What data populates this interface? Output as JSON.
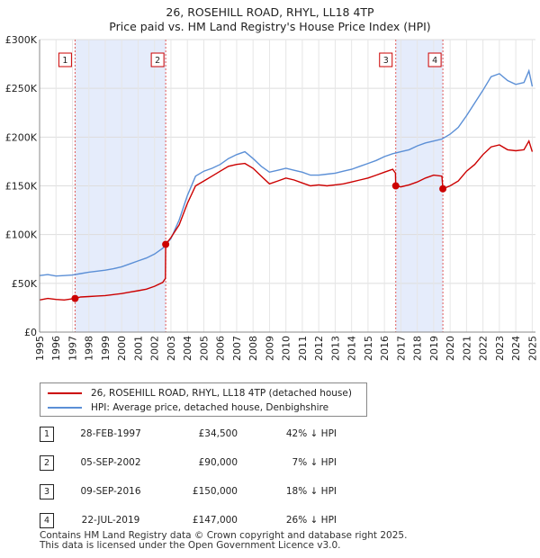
{
  "chart_data": {
    "type": "line",
    "title": "26, ROSEHILL ROAD, RHYL, LL18 4TP",
    "subtitle": "Price paid vs. HM Land Registry's House Price Index (HPI)",
    "xlim": [
      1995,
      2025.2
    ],
    "ylim": [
      0,
      300000
    ],
    "x_ticks": [
      "1995",
      "1996",
      "1997",
      "1998",
      "1999",
      "2000",
      "2001",
      "2002",
      "2003",
      "2004",
      "2005",
      "2006",
      "2007",
      "2008",
      "2009",
      "2010",
      "2011",
      "2012",
      "2013",
      "2014",
      "2015",
      "2016",
      "2017",
      "2018",
      "2019",
      "2020",
      "2021",
      "2022",
      "2023",
      "2024",
      "2025"
    ],
    "y_ticks": [
      {
        "value": 0,
        "label": "£0"
      },
      {
        "value": 50000,
        "label": "£50K"
      },
      {
        "value": 100000,
        "label": "£100K"
      },
      {
        "value": 150000,
        "label": "£150K"
      },
      {
        "value": 200000,
        "label": "£200K"
      },
      {
        "value": 250000,
        "label": "£250K"
      },
      {
        "value": 300000,
        "label": "£300K"
      }
    ],
    "shaded_ranges": [
      [
        1997.16,
        2002.68
      ],
      [
        2016.69,
        2019.56
      ]
    ],
    "series": [
      {
        "name": "26, ROSEHILL ROAD, RHYL, LL18 4TP (detached house)",
        "color": "#cc0000",
        "points": [
          [
            1995.0,
            33000
          ],
          [
            1995.5,
            34500
          ],
          [
            1996.0,
            33500
          ],
          [
            1996.5,
            33000
          ],
          [
            1997.16,
            34500
          ],
          [
            1997.5,
            36000
          ],
          [
            1998.0,
            36500
          ],
          [
            1998.5,
            37000
          ],
          [
            1999.0,
            37500
          ],
          [
            1999.5,
            38500
          ],
          [
            2000.0,
            39500
          ],
          [
            2000.5,
            41000
          ],
          [
            2001.0,
            42500
          ],
          [
            2001.5,
            44000
          ],
          [
            2002.0,
            47000
          ],
          [
            2002.5,
            51000
          ],
          [
            2002.66,
            55000
          ],
          [
            2002.68,
            90000
          ],
          [
            2003.0,
            97000
          ],
          [
            2003.5,
            110000
          ],
          [
            2004.0,
            132000
          ],
          [
            2004.5,
            150000
          ],
          [
            2005.0,
            155000
          ],
          [
            2005.5,
            160000
          ],
          [
            2006.0,
            165000
          ],
          [
            2006.5,
            170000
          ],
          [
            2007.0,
            172000
          ],
          [
            2007.5,
            173000
          ],
          [
            2008.0,
            168000
          ],
          [
            2008.5,
            160000
          ],
          [
            2009.0,
            152000
          ],
          [
            2009.5,
            155000
          ],
          [
            2010.0,
            158000
          ],
          [
            2010.5,
            156000
          ],
          [
            2011.0,
            153000
          ],
          [
            2011.5,
            150000
          ],
          [
            2012.0,
            151000
          ],
          [
            2012.5,
            150000
          ],
          [
            2013.0,
            151000
          ],
          [
            2013.5,
            152000
          ],
          [
            2014.0,
            154000
          ],
          [
            2014.5,
            156000
          ],
          [
            2015.0,
            158000
          ],
          [
            2015.5,
            161000
          ],
          [
            2016.0,
            164000
          ],
          [
            2016.5,
            167000
          ],
          [
            2016.67,
            163000
          ],
          [
            2016.69,
            150000
          ],
          [
            2017.0,
            149000
          ],
          [
            2017.5,
            151000
          ],
          [
            2018.0,
            154000
          ],
          [
            2018.5,
            158000
          ],
          [
            2019.0,
            161000
          ],
          [
            2019.5,
            160000
          ],
          [
            2019.56,
            147000
          ],
          [
            2020.0,
            150000
          ],
          [
            2020.5,
            155000
          ],
          [
            2021.0,
            165000
          ],
          [
            2021.5,
            172000
          ],
          [
            2022.0,
            182000
          ],
          [
            2022.5,
            190000
          ],
          [
            2023.0,
            192000
          ],
          [
            2023.5,
            187000
          ],
          [
            2024.0,
            186000
          ],
          [
            2024.5,
            187000
          ],
          [
            2024.8,
            196000
          ],
          [
            2025.0,
            185000
          ]
        ]
      },
      {
        "name": "HPI: Average price, detached house, Denbighshire",
        "color": "#5b8fd6",
        "points": [
          [
            1995.0,
            58000
          ],
          [
            1995.5,
            59000
          ],
          [
            1996.0,
            57500
          ],
          [
            1996.5,
            58000
          ],
          [
            1997.0,
            58500
          ],
          [
            1997.5,
            60000
          ],
          [
            1998.0,
            61500
          ],
          [
            1998.5,
            62500
          ],
          [
            1999.0,
            63500
          ],
          [
            1999.5,
            65000
          ],
          [
            2000.0,
            67000
          ],
          [
            2000.5,
            70000
          ],
          [
            2001.0,
            73000
          ],
          [
            2001.5,
            76000
          ],
          [
            2002.0,
            80000
          ],
          [
            2002.5,
            86000
          ],
          [
            2003.0,
            96000
          ],
          [
            2003.5,
            115000
          ],
          [
            2004.0,
            140000
          ],
          [
            2004.5,
            160000
          ],
          [
            2005.0,
            165000
          ],
          [
            2005.5,
            168000
          ],
          [
            2006.0,
            172000
          ],
          [
            2006.5,
            178000
          ],
          [
            2007.0,
            182000
          ],
          [
            2007.5,
            185000
          ],
          [
            2008.0,
            178000
          ],
          [
            2008.5,
            170000
          ],
          [
            2009.0,
            164000
          ],
          [
            2009.5,
            166000
          ],
          [
            2010.0,
            168000
          ],
          [
            2010.5,
            166000
          ],
          [
            2011.0,
            164000
          ],
          [
            2011.5,
            161000
          ],
          [
            2012.0,
            161000
          ],
          [
            2012.5,
            162000
          ],
          [
            2013.0,
            163000
          ],
          [
            2013.5,
            165000
          ],
          [
            2014.0,
            167000
          ],
          [
            2014.5,
            170000
          ],
          [
            2015.0,
            173000
          ],
          [
            2015.5,
            176000
          ],
          [
            2016.0,
            180000
          ],
          [
            2016.5,
            183000
          ],
          [
            2017.0,
            185000
          ],
          [
            2017.5,
            187000
          ],
          [
            2018.0,
            191000
          ],
          [
            2018.5,
            194000
          ],
          [
            2019.0,
            196000
          ],
          [
            2019.5,
            198000
          ],
          [
            2020.0,
            203000
          ],
          [
            2020.5,
            210000
          ],
          [
            2021.0,
            222000
          ],
          [
            2021.5,
            235000
          ],
          [
            2022.0,
            248000
          ],
          [
            2022.5,
            262000
          ],
          [
            2023.0,
            265000
          ],
          [
            2023.5,
            258000
          ],
          [
            2024.0,
            254000
          ],
          [
            2024.5,
            256000
          ],
          [
            2024.8,
            268000
          ],
          [
            2025.0,
            252000
          ]
        ]
      }
    ],
    "sale_points": [
      [
        1997.16,
        34500
      ],
      [
        2002.68,
        90000
      ],
      [
        2016.69,
        150000
      ],
      [
        2019.56,
        147000
      ]
    ],
    "markers": [
      {
        "label": "1",
        "x": 1997.16
      },
      {
        "label": "2",
        "x": 2002.68
      },
      {
        "label": "3",
        "x": 2016.69
      },
      {
        "label": "4",
        "x": 2019.56
      }
    ]
  },
  "legend": {
    "property": "26, ROSEHILL ROAD, RHYL, LL18 4TP (detached house)",
    "hpi": "HPI: Average price, detached house, Denbighshire",
    "property_color": "#cc0000",
    "hpi_color": "#5b8fd6"
  },
  "sales": [
    {
      "num": "1",
      "date": "28-FEB-1997",
      "price": "£34,500",
      "hpi": "42% ↓ HPI"
    },
    {
      "num": "2",
      "date": "05-SEP-2002",
      "price": "£90,000",
      "hpi": "7% ↓ HPI"
    },
    {
      "num": "3",
      "date": "09-SEP-2016",
      "price": "£150,000",
      "hpi": "18% ↓ HPI"
    },
    {
      "num": "4",
      "date": "22-JUL-2019",
      "price": "£147,000",
      "hpi": "26% ↓ HPI"
    }
  ],
  "footer": {
    "line1": "Contains HM Land Registry data © Crown copyright and database right 2025.",
    "line2": "This data is licensed under the Open Government Licence v3.0."
  }
}
